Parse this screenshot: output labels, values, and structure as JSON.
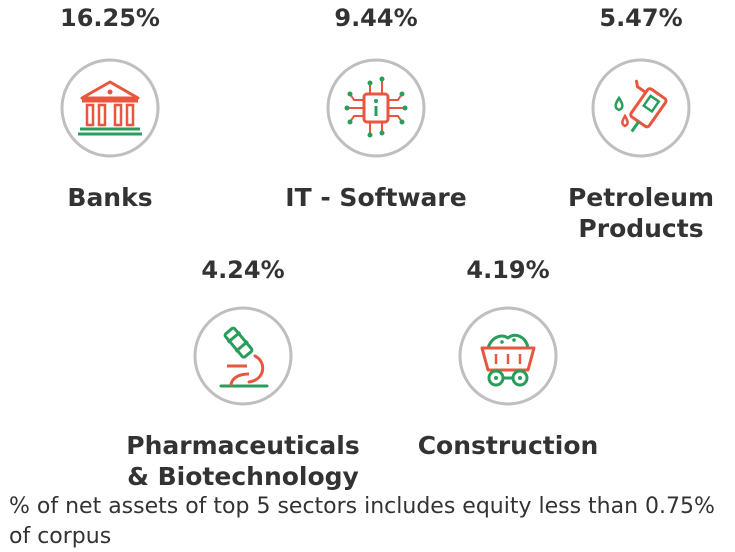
{
  "sectors": [
    {
      "percent": "16.25%",
      "name": "Banks",
      "icon": "bank-icon"
    },
    {
      "percent": "9.44%",
      "name": "IT - Software",
      "icon": "chip-icon"
    },
    {
      "percent": "5.47%",
      "name": "Petroleum\nProducts",
      "icon": "fuel-nozzle-icon"
    },
    {
      "percent": "4.24%",
      "name": "Pharmaceuticals\n& Biotechnology",
      "icon": "microscope-icon"
    },
    {
      "percent": "4.19%",
      "name": "Construction",
      "icon": "mine-cart-icon"
    }
  ],
  "footnote": "% of net assets of top 5 sectors includes equity less than 0.75% of corpus",
  "colors": {
    "text": "#333333",
    "circle": "#bfbfbf",
    "accent_red": "#e8563f",
    "accent_green": "#2a9d5c"
  }
}
